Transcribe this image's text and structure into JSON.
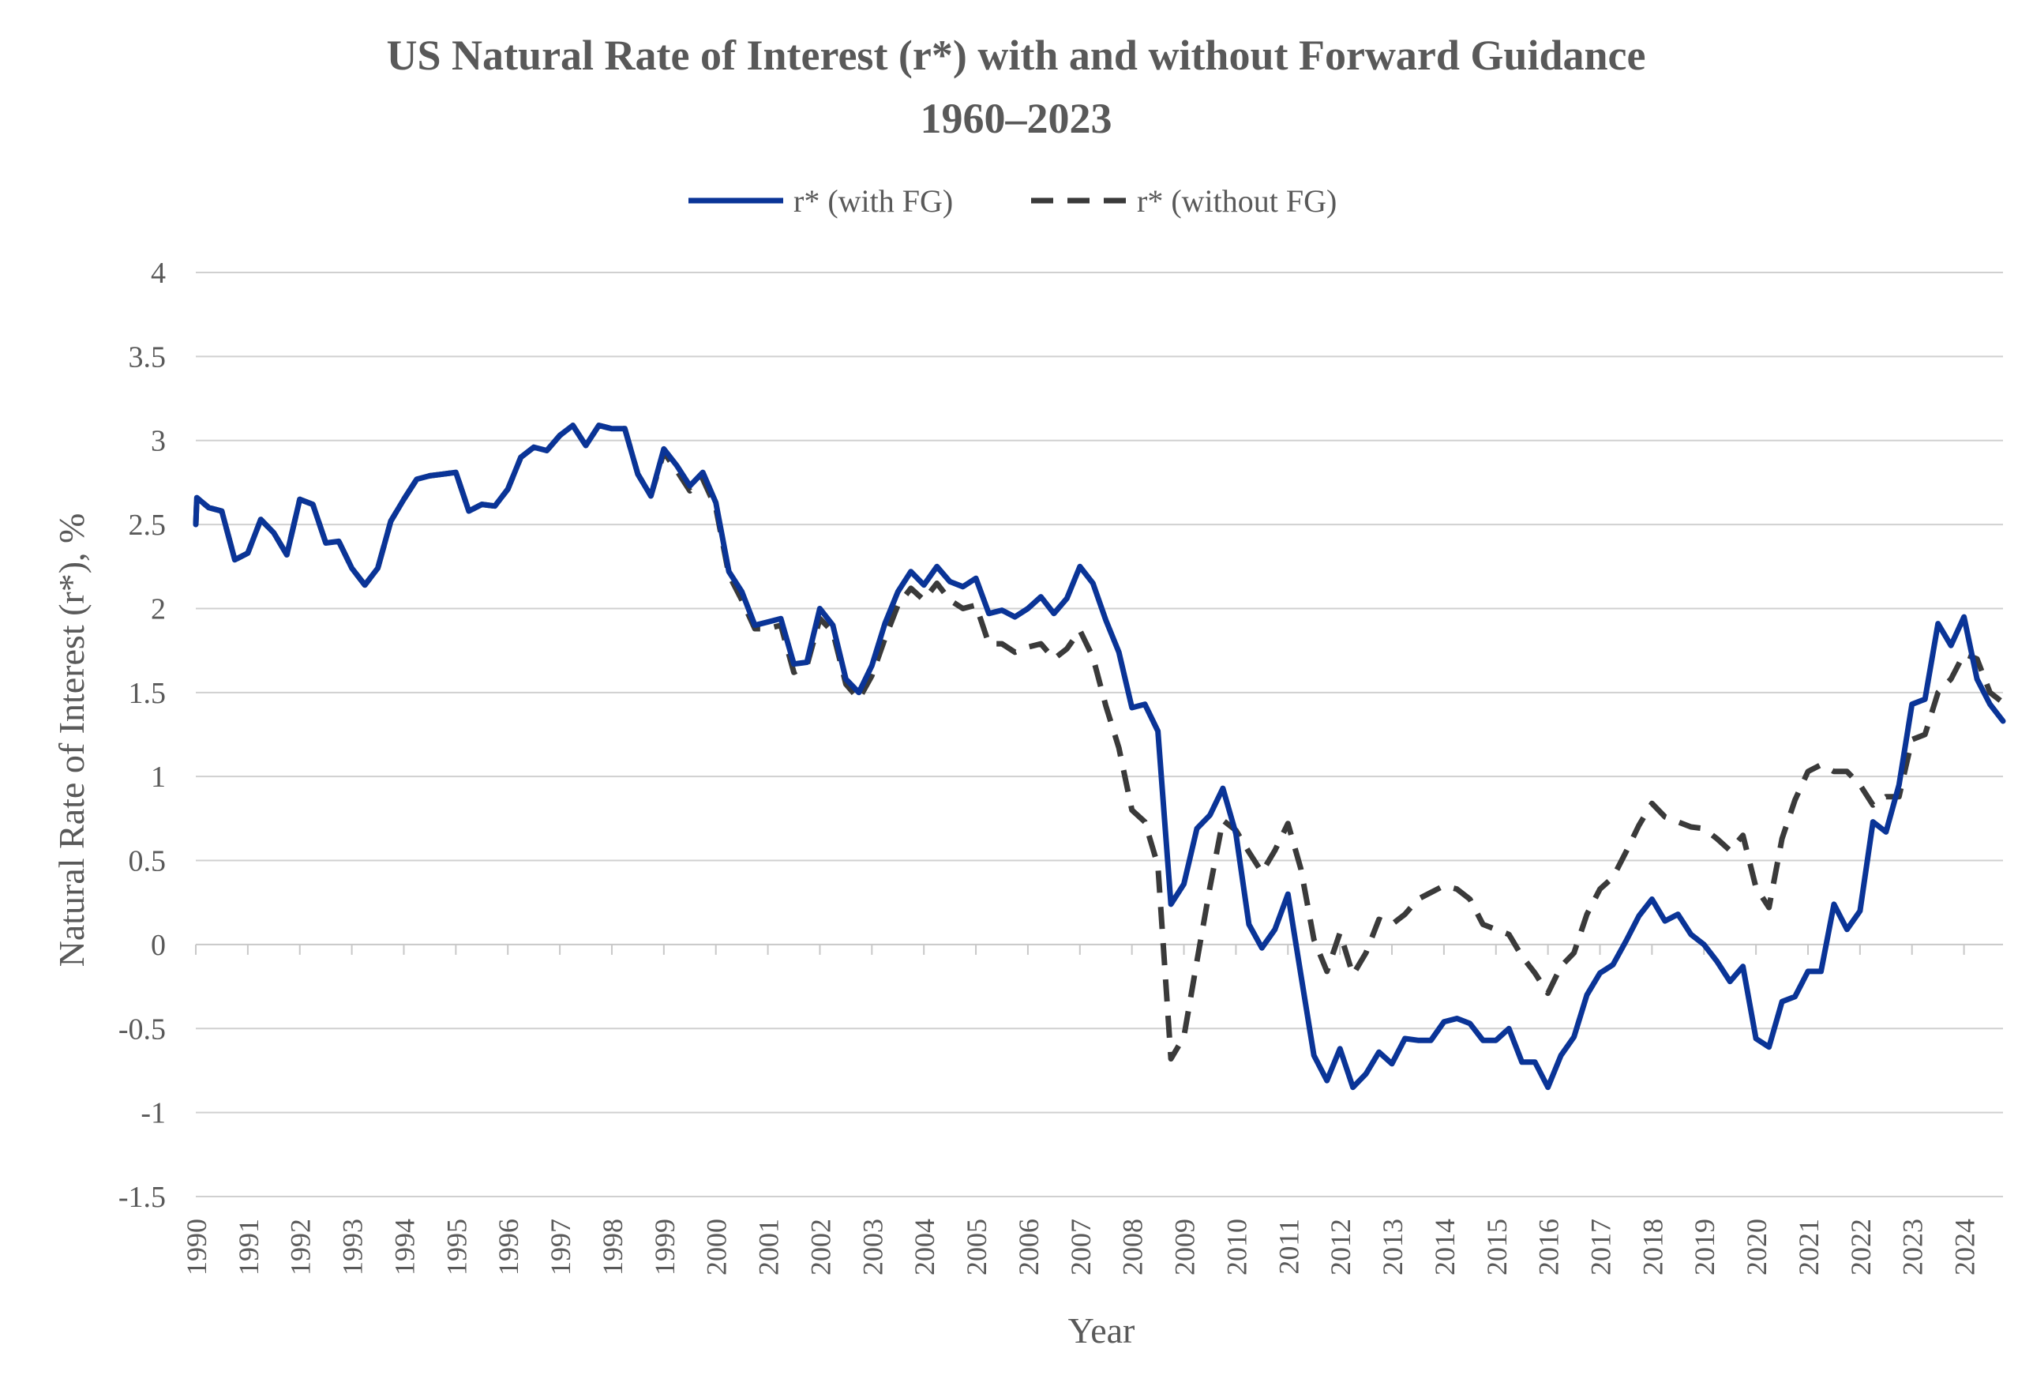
{
  "colors": {
    "with_fg": "#0a3497",
    "without_fg": "#3a3a3a",
    "text": "#595959",
    "grid": "#d0d0d0"
  },
  "chart_data": {
    "type": "line",
    "title": "US Natural Rate of Interest (r*) with and without Forward Guidance",
    "subtitle": "1960–2023",
    "xlabel": "Year",
    "ylabel": "Natural Rate of Interest (r*), %",
    "legend_position": "top-center",
    "grid": true,
    "ylim": [
      -1.5,
      4
    ],
    "y_ticks": [
      "4",
      "3.5",
      "3",
      "2.5",
      "2",
      "1.5",
      "1",
      "0.5",
      "0",
      "-0.5",
      "-1",
      "-1.5"
    ],
    "y_tick_values": [
      4,
      3.5,
      3,
      2.5,
      2,
      1.5,
      1,
      0.5,
      0,
      -0.5,
      -1,
      -1.5
    ],
    "xlim": [
      1990,
      2024.75
    ],
    "x_ticks": [
      "1990",
      "1991",
      "1992",
      "1993",
      "1994",
      "1995",
      "1996",
      "1997",
      "1998",
      "1999",
      "2000",
      "2001",
      "2002",
      "2003",
      "2004",
      "2005",
      "2006",
      "2007",
      "2008",
      "2009",
      "2010",
      "2011",
      "2012",
      "2013",
      "2014",
      "2015",
      "2016",
      "2017",
      "2018",
      "2019",
      "2020",
      "2021",
      "2022",
      "2023",
      "2024"
    ],
    "x_tick_values": [
      1990,
      1991,
      1992,
      1993,
      1994,
      1995,
      1996,
      1997,
      1998,
      1999,
      2000,
      2001,
      2002,
      2003,
      2004,
      2005,
      2006,
      2007,
      2008,
      2009,
      2010,
      2011,
      2012,
      2013,
      2014,
      2015,
      2016,
      2017,
      2018,
      2019,
      2020,
      2021,
      2022,
      2023,
      2024
    ],
    "series": [
      {
        "name": "r* (with FG)",
        "style": "solid",
        "points": [
          [
            1990,
            2.5
          ],
          [
            1990.02,
            2.66
          ],
          [
            1990.25,
            2.6
          ],
          [
            1990.5,
            2.58
          ],
          [
            1990.75,
            2.29
          ],
          [
            1991,
            2.33
          ],
          [
            1991.25,
            2.53
          ],
          [
            1991.5,
            2.45
          ],
          [
            1991.75,
            2.32
          ],
          [
            1992,
            2.65
          ],
          [
            1992.25,
            2.62
          ],
          [
            1992.5,
            2.39
          ],
          [
            1992.75,
            2.4
          ],
          [
            1993,
            2.24
          ],
          [
            1993.25,
            2.14
          ],
          [
            1993.5,
            2.24
          ],
          [
            1993.75,
            2.52
          ],
          [
            1994,
            2.65
          ],
          [
            1994.25,
            2.77
          ],
          [
            1994.5,
            2.79
          ],
          [
            1994.75,
            2.8
          ],
          [
            1995,
            2.81
          ],
          [
            1995.25,
            2.58
          ],
          [
            1995.5,
            2.62
          ],
          [
            1995.75,
            2.61
          ],
          [
            1996,
            2.71
          ],
          [
            1996.25,
            2.9
          ],
          [
            1996.5,
            2.96
          ],
          [
            1996.75,
            2.94
          ],
          [
            1997,
            3.03
          ],
          [
            1997.25,
            3.09
          ],
          [
            1997.5,
            2.97
          ],
          [
            1997.75,
            3.09
          ],
          [
            1998,
            3.07
          ],
          [
            1998.25,
            3.07
          ],
          [
            1998.5,
            2.8
          ],
          [
            1998.75,
            2.67
          ],
          [
            1999,
            2.95
          ],
          [
            1999.25,
            2.85
          ],
          [
            1999.5,
            2.73
          ],
          [
            1999.75,
            2.81
          ],
          [
            2000,
            2.63
          ],
          [
            2000.25,
            2.22
          ],
          [
            2000.5,
            2.1
          ],
          [
            2000.75,
            1.9
          ],
          [
            2001,
            1.92
          ],
          [
            2001.25,
            1.94
          ],
          [
            2001.5,
            1.67
          ],
          [
            2001.75,
            1.68
          ],
          [
            2002,
            2.0
          ],
          [
            2002.25,
            1.9
          ],
          [
            2002.5,
            1.58
          ],
          [
            2002.75,
            1.5
          ],
          [
            2003,
            1.66
          ],
          [
            2003.25,
            1.91
          ],
          [
            2003.5,
            2.1
          ],
          [
            2003.75,
            2.22
          ],
          [
            2004,
            2.14
          ],
          [
            2004.25,
            2.25
          ],
          [
            2004.5,
            2.16
          ],
          [
            2004.75,
            2.13
          ],
          [
            2005,
            2.18
          ],
          [
            2005.25,
            1.97
          ],
          [
            2005.5,
            1.99
          ],
          [
            2005.75,
            1.95
          ],
          [
            2006,
            2.0
          ],
          [
            2006.25,
            2.07
          ],
          [
            2006.5,
            1.97
          ],
          [
            2006.75,
            2.06
          ],
          [
            2007,
            2.25
          ],
          [
            2007.25,
            2.15
          ],
          [
            2007.5,
            1.93
          ],
          [
            2007.75,
            1.74
          ],
          [
            2008,
            1.41
          ],
          [
            2008.25,
            1.43
          ],
          [
            2008.5,
            1.27
          ],
          [
            2008.75,
            0.24
          ],
          [
            2009,
            0.36
          ],
          [
            2009.25,
            0.69
          ],
          [
            2009.5,
            0.77
          ],
          [
            2009.75,
            0.93
          ],
          [
            2010,
            0.66
          ],
          [
            2010.25,
            0.12
          ],
          [
            2010.5,
            -0.02
          ],
          [
            2010.75,
            0.09
          ],
          [
            2011,
            0.3
          ],
          [
            2011.25,
            -0.18
          ],
          [
            2011.5,
            -0.66
          ],
          [
            2011.75,
            -0.81
          ],
          [
            2012,
            -0.62
          ],
          [
            2012.25,
            -0.85
          ],
          [
            2012.5,
            -0.77
          ],
          [
            2012.75,
            -0.64
          ],
          [
            2013,
            -0.71
          ],
          [
            2013.25,
            -0.56
          ],
          [
            2013.5,
            -0.57
          ],
          [
            2013.75,
            -0.57
          ],
          [
            2014,
            -0.46
          ],
          [
            2014.25,
            -0.44
          ],
          [
            2014.5,
            -0.47
          ],
          [
            2014.75,
            -0.57
          ],
          [
            2015,
            -0.57
          ],
          [
            2015.25,
            -0.5
          ],
          [
            2015.5,
            -0.7
          ],
          [
            2015.75,
            -0.7
          ],
          [
            2016,
            -0.85
          ],
          [
            2016.25,
            -0.66
          ],
          [
            2016.5,
            -0.55
          ],
          [
            2016.75,
            -0.3
          ],
          [
            2017,
            -0.17
          ],
          [
            2017.25,
            -0.12
          ],
          [
            2017.5,
            0.02
          ],
          [
            2017.75,
            0.17
          ],
          [
            2018,
            0.27
          ],
          [
            2018.25,
            0.14
          ],
          [
            2018.5,
            0.18
          ],
          [
            2018.75,
            0.06
          ],
          [
            2019,
            0.0
          ],
          [
            2019.25,
            -0.1
          ],
          [
            2019.5,
            -0.22
          ],
          [
            2019.75,
            -0.13
          ],
          [
            2020,
            -0.56
          ],
          [
            2020.25,
            -0.61
          ],
          [
            2020.5,
            -0.34
          ],
          [
            2020.75,
            -0.31
          ],
          [
            2021,
            -0.16
          ],
          [
            2021.25,
            -0.16
          ],
          [
            2021.5,
            0.24
          ],
          [
            2021.75,
            0.09
          ],
          [
            2022,
            0.2
          ],
          [
            2022.25,
            0.73
          ],
          [
            2022.5,
            0.67
          ],
          [
            2022.75,
            0.95
          ],
          [
            2023,
            1.43
          ],
          [
            2023.25,
            1.46
          ],
          [
            2023.5,
            1.91
          ],
          [
            2023.75,
            1.78
          ],
          [
            2024,
            1.95
          ],
          [
            2024.25,
            1.58
          ],
          [
            2024.5,
            1.43
          ],
          [
            2024.75,
            1.33
          ]
        ]
      },
      {
        "name": "r* (without FG)",
        "style": "dashed",
        "points": [
          [
            1990,
            2.5
          ],
          [
            1990.02,
            2.66
          ],
          [
            1990.25,
            2.6
          ],
          [
            1990.5,
            2.58
          ],
          [
            1990.75,
            2.29
          ],
          [
            1991,
            2.33
          ],
          [
            1991.25,
            2.53
          ],
          [
            1991.5,
            2.45
          ],
          [
            1991.75,
            2.32
          ],
          [
            1992,
            2.65
          ],
          [
            1992.25,
            2.62
          ],
          [
            1992.5,
            2.39
          ],
          [
            1992.75,
            2.4
          ],
          [
            1993,
            2.24
          ],
          [
            1993.25,
            2.14
          ],
          [
            1993.5,
            2.24
          ],
          [
            1993.75,
            2.52
          ],
          [
            1994,
            2.65
          ],
          [
            1994.25,
            2.77
          ],
          [
            1994.5,
            2.79
          ],
          [
            1994.75,
            2.8
          ],
          [
            1995,
            2.81
          ],
          [
            1995.25,
            2.58
          ],
          [
            1995.5,
            2.62
          ],
          [
            1995.75,
            2.61
          ],
          [
            1996,
            2.71
          ],
          [
            1996.25,
            2.9
          ],
          [
            1996.5,
            2.96
          ],
          [
            1996.75,
            2.94
          ],
          [
            1997,
            3.03
          ],
          [
            1997.25,
            3.09
          ],
          [
            1997.5,
            2.97
          ],
          [
            1997.75,
            3.09
          ],
          [
            1998,
            3.07
          ],
          [
            1998.25,
            3.07
          ],
          [
            1998.5,
            2.8
          ],
          [
            1998.75,
            2.67
          ],
          [
            1999,
            2.93
          ],
          [
            1999.25,
            2.82
          ],
          [
            1999.5,
            2.7
          ],
          [
            1999.75,
            2.77
          ],
          [
            2000,
            2.6
          ],
          [
            2000.25,
            2.2
          ],
          [
            2000.5,
            2.05
          ],
          [
            2000.75,
            1.88
          ],
          [
            2001,
            1.88
          ],
          [
            2001.25,
            1.9
          ],
          [
            2001.5,
            1.62
          ],
          [
            2001.75,
            1.66
          ],
          [
            2002,
            1.94
          ],
          [
            2002.25,
            1.86
          ],
          [
            2002.5,
            1.55
          ],
          [
            2002.75,
            1.46
          ],
          [
            2003,
            1.6
          ],
          [
            2003.25,
            1.82
          ],
          [
            2003.5,
            2.02
          ],
          [
            2003.75,
            2.12
          ],
          [
            2004,
            2.05
          ],
          [
            2004.25,
            2.15
          ],
          [
            2004.5,
            2.05
          ],
          [
            2004.75,
            2.0
          ],
          [
            2005,
            2.02
          ],
          [
            2005.25,
            1.79
          ],
          [
            2005.5,
            1.79
          ],
          [
            2005.75,
            1.74
          ],
          [
            2006,
            1.77
          ],
          [
            2006.25,
            1.79
          ],
          [
            2006.5,
            1.7
          ],
          [
            2006.75,
            1.76
          ],
          [
            2007,
            1.87
          ],
          [
            2007.25,
            1.71
          ],
          [
            2007.5,
            1.42
          ],
          [
            2007.75,
            1.17
          ],
          [
            2008,
            0.8
          ],
          [
            2008.25,
            0.73
          ],
          [
            2008.5,
            0.47
          ],
          [
            2008.75,
            -0.68
          ],
          [
            2009,
            -0.55
          ],
          [
            2009.25,
            -0.1
          ],
          [
            2009.5,
            0.34
          ],
          [
            2009.75,
            0.74
          ],
          [
            2010,
            0.68
          ],
          [
            2010.25,
            0.55
          ],
          [
            2010.5,
            0.43
          ],
          [
            2010.75,
            0.56
          ],
          [
            2011,
            0.72
          ],
          [
            2011.25,
            0.45
          ],
          [
            2011.5,
            0.03
          ],
          [
            2011.75,
            -0.16
          ],
          [
            2012,
            0.07
          ],
          [
            2012.25,
            -0.18
          ],
          [
            2012.5,
            -0.05
          ],
          [
            2012.75,
            0.15
          ],
          [
            2013,
            0.12
          ],
          [
            2013.25,
            0.18
          ],
          [
            2013.5,
            0.27
          ],
          [
            2013.75,
            0.31
          ],
          [
            2014,
            0.35
          ],
          [
            2014.25,
            0.33
          ],
          [
            2014.5,
            0.27
          ],
          [
            2014.75,
            0.12
          ],
          [
            2015,
            0.09
          ],
          [
            2015.25,
            0.06
          ],
          [
            2015.5,
            -0.07
          ],
          [
            2015.75,
            -0.17
          ],
          [
            2016,
            -0.29
          ],
          [
            2016.25,
            -0.13
          ],
          [
            2016.5,
            -0.05
          ],
          [
            2016.75,
            0.18
          ],
          [
            2017,
            0.33
          ],
          [
            2017.25,
            0.4
          ],
          [
            2017.5,
            0.55
          ],
          [
            2017.75,
            0.71
          ],
          [
            2018,
            0.84
          ],
          [
            2018.25,
            0.76
          ],
          [
            2018.5,
            0.73
          ],
          [
            2018.75,
            0.7
          ],
          [
            2019,
            0.69
          ],
          [
            2019.25,
            0.63
          ],
          [
            2019.5,
            0.56
          ],
          [
            2019.75,
            0.65
          ],
          [
            2020,
            0.34
          ],
          [
            2020.25,
            0.22
          ],
          [
            2020.5,
            0.63
          ],
          [
            2020.75,
            0.86
          ],
          [
            2021,
            1.03
          ],
          [
            2021.25,
            1.07
          ],
          [
            2021.5,
            1.03
          ],
          [
            2021.75,
            1.03
          ],
          [
            2022,
            0.95
          ],
          [
            2022.25,
            0.83
          ],
          [
            2022.5,
            0.88
          ],
          [
            2022.75,
            0.88
          ],
          [
            2023,
            1.22
          ],
          [
            2023.25,
            1.25
          ],
          [
            2023.5,
            1.5
          ],
          [
            2023.75,
            1.58
          ],
          [
            2024,
            1.73
          ],
          [
            2024.25,
            1.7
          ],
          [
            2024.5,
            1.5
          ],
          [
            2024.75,
            1.44
          ]
        ]
      }
    ]
  }
}
